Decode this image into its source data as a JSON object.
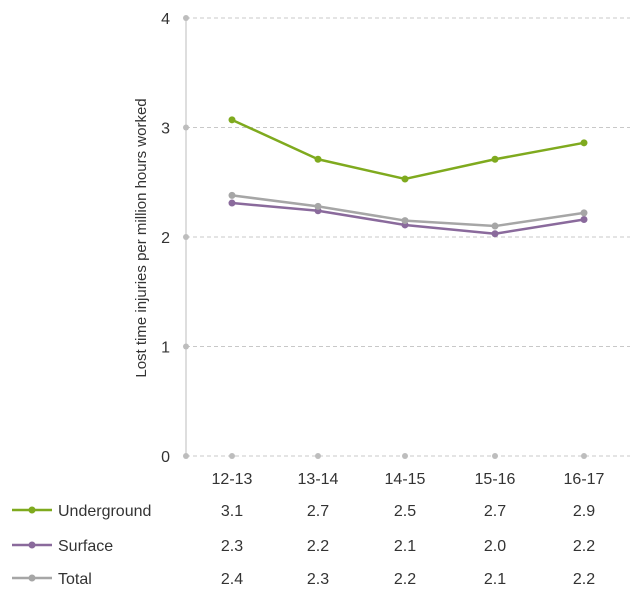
{
  "chart_data": {
    "type": "line",
    "ylabel": "Lost time injuries per million hours worked",
    "ylim": [
      0,
      4
    ],
    "yticks": [
      0,
      1,
      2,
      3,
      4
    ],
    "grid": true,
    "legend_placement": "bottom-left",
    "categories": [
      "12-13",
      "13-14",
      "14-15",
      "15-16",
      "16-17"
    ],
    "series": [
      {
        "name": "Underground",
        "color": "#7faa1e",
        "values": [
          3.07,
          2.71,
          2.53,
          2.71,
          2.86
        ],
        "labels": [
          "3.1",
          "2.7",
          "2.5",
          "2.7",
          "2.9"
        ]
      },
      {
        "name": "Surface",
        "color": "#8a6a9c",
        "values": [
          2.31,
          2.24,
          2.11,
          2.03,
          2.16
        ],
        "labels": [
          "2.3",
          "2.2",
          "2.1",
          "2.0",
          "2.2"
        ]
      },
      {
        "name": "Total",
        "color": "#a6a6a6",
        "values": [
          2.38,
          2.28,
          2.15,
          2.1,
          2.22
        ],
        "labels": [
          "2.4",
          "2.3",
          "2.2",
          "2.1",
          "2.2"
        ]
      }
    ]
  }
}
